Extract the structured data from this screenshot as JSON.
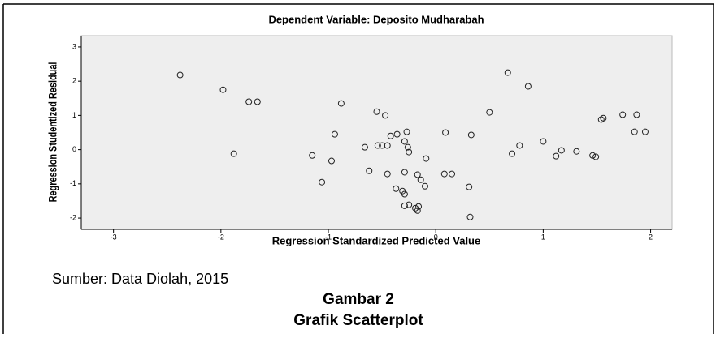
{
  "chart_data": {
    "type": "scatter",
    "title": "Dependent Variable: Deposito Mudharabah",
    "xlabel": "Regression Standardized Predicted Value",
    "ylabel": "Regression Studentized Residual",
    "x": [
      -2.38,
      -1.98,
      -1.74,
      -1.66,
      -1.88,
      -0.88,
      -0.94,
      -1.15,
      -0.97,
      -1.06,
      -0.66,
      -0.62,
      -0.55,
      -0.47,
      -0.54,
      -0.5,
      -0.45,
      -0.42,
      -0.36,
      -0.27,
      -0.29,
      -0.26,
      -0.25,
      -0.45,
      -0.29,
      -0.17,
      -0.14,
      -0.09,
      -0.1,
      -0.37,
      -0.31,
      -0.29,
      -0.29,
      -0.25,
      -0.19,
      -0.16,
      -0.17,
      0.09,
      0.08,
      0.15,
      0.31,
      0.32,
      0.33,
      0.5,
      0.67,
      0.71,
      0.78,
      0.86,
      1.0,
      1.12,
      1.17,
      1.31,
      1.46,
      1.49,
      1.54,
      1.56,
      1.74,
      1.87,
      1.85,
      1.95
    ],
    "values": [
      2.18,
      1.75,
      1.4,
      1.4,
      -0.12,
      1.35,
      0.45,
      -0.17,
      -0.33,
      -0.95,
      0.07,
      -0.62,
      1.11,
      1.0,
      0.12,
      0.12,
      0.12,
      0.4,
      0.45,
      0.52,
      0.24,
      0.07,
      -0.07,
      -0.71,
      -0.66,
      -0.73,
      -0.88,
      -0.26,
      -1.07,
      -1.14,
      -1.21,
      -1.3,
      -1.64,
      -1.61,
      -1.71,
      -1.66,
      -1.78,
      0.5,
      -0.71,
      -0.71,
      -1.09,
      -1.97,
      0.43,
      1.09,
      2.25,
      -0.12,
      0.12,
      1.85,
      0.24,
      -0.19,
      -0.02,
      -0.05,
      -0.17,
      -0.21,
      0.88,
      0.92,
      1.02,
      1.02,
      0.52,
      0.52
    ],
    "color": "#222222",
    "background": "#eeeeee",
    "xlim": [
      -3.3,
      2.2
    ],
    "xticks": [
      -3,
      -2,
      -1,
      0,
      1,
      2
    ],
    "ylim": [
      -2.33,
      3.33
    ],
    "yticks": [
      3,
      2,
      1,
      0,
      -1,
      -2
    ]
  },
  "caption": {
    "source": "Sumber: Data Diolah, 2015",
    "figure": "Gambar 2",
    "title": "Grafik Scatterplot"
  }
}
